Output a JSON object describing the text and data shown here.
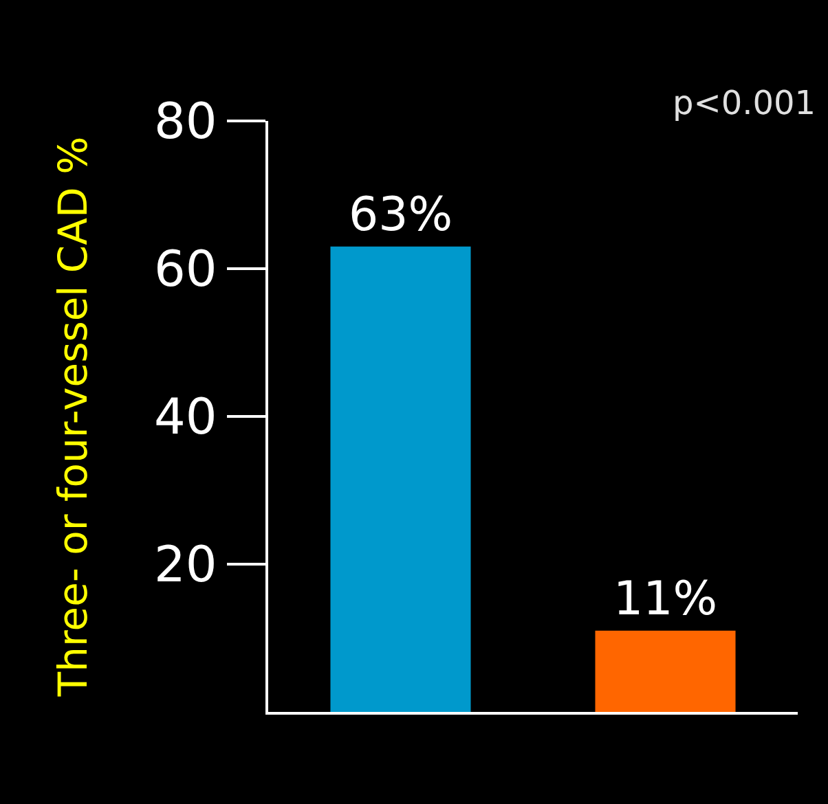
{
  "chart_data": {
    "type": "bar",
    "ylabel": "Three- or four-vessel CAD %",
    "categories": [
      null,
      null
    ],
    "values": [
      63,
      11
    ],
    "colors": [
      "#0099cc",
      "#ff6600"
    ],
    "value_labels": [
      "63%",
      "11%"
    ],
    "ylim": [
      0,
      80
    ],
    "yticks": [
      20,
      40,
      60,
      80
    ],
    "grid": false,
    "legend": false,
    "annotations": [
      "p<0.001"
    ]
  }
}
